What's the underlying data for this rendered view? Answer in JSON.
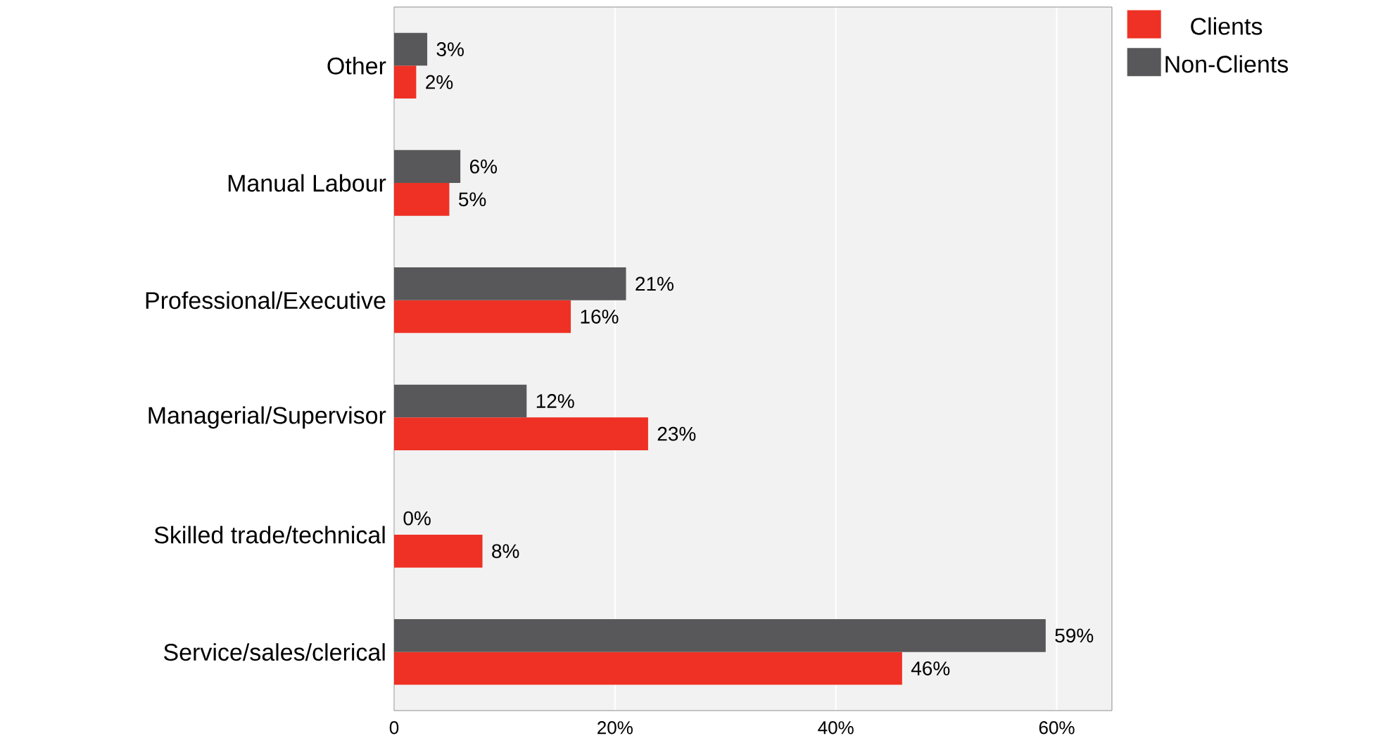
{
  "chart_data": {
    "type": "bar",
    "orientation": "horizontal",
    "categories": [
      "Other",
      "Manual Labour",
      "Professional/Executive",
      "Managerial/Supervisor",
      "Skilled trade/technical",
      "Service/sales/clerical"
    ],
    "series": [
      {
        "name": "Clients",
        "color": "#ee3124",
        "values": [
          2,
          5,
          16,
          23,
          8,
          46
        ],
        "value_labels": [
          "2%",
          "5%",
          "16%",
          "23%",
          "8%",
          "46%"
        ]
      },
      {
        "name": "Non-Clients",
        "color": "#58585a",
        "values": [
          3,
          6,
          21,
          12,
          0,
          59
        ],
        "value_labels": [
          "3%",
          "6%",
          "21%",
          "12%",
          "0%",
          "59%"
        ]
      }
    ],
    "xlim": [
      0,
      65
    ],
    "xticks": [
      0,
      {
        "value": 20,
        "label": "20%"
      },
      {
        "value": 40,
        "label": "40%"
      },
      {
        "value": 60,
        "label": "60%"
      }
    ],
    "grid": "x",
    "legend": "top right"
  }
}
